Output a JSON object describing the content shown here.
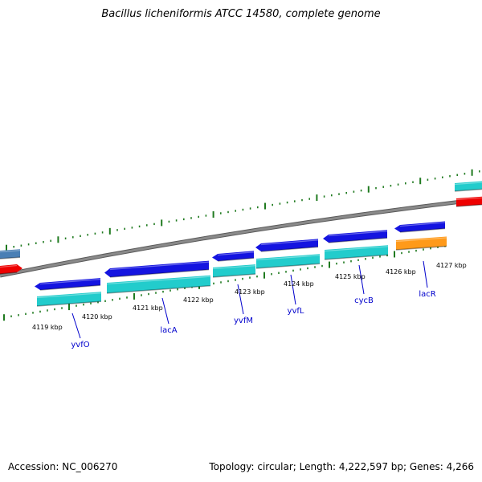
{
  "title": "Bacillus licheniformis ATCC 14580, complete genome",
  "accession_text": "Accession: NC_006270",
  "stats_text": "Topology: circular; Length: 4,222,597 bp; Genes: 4,266",
  "colors": {
    "backbone": "#8a8a8a",
    "tick": "#1f7a1f",
    "gene_label": "#0000cc",
    "forward_gene": "#1414e0",
    "reverse_gene": "#22cccc",
    "red_gene": "#ee0000",
    "orange_gene": "#ff9a1a",
    "steel_gene": "#4a7fb5"
  },
  "scale_labels": [
    "4119 kbp",
    "4120 kbp",
    "4121 kbp",
    "4122 kbp",
    "4123 kbp",
    "4124 kbp",
    "4125 kbp",
    "4126 kbp",
    "4127 kbp"
  ],
  "gene_labels": [
    "yvfO",
    "lacA",
    "yvfM",
    "yvfL",
    "cycB",
    "lacR"
  ]
}
